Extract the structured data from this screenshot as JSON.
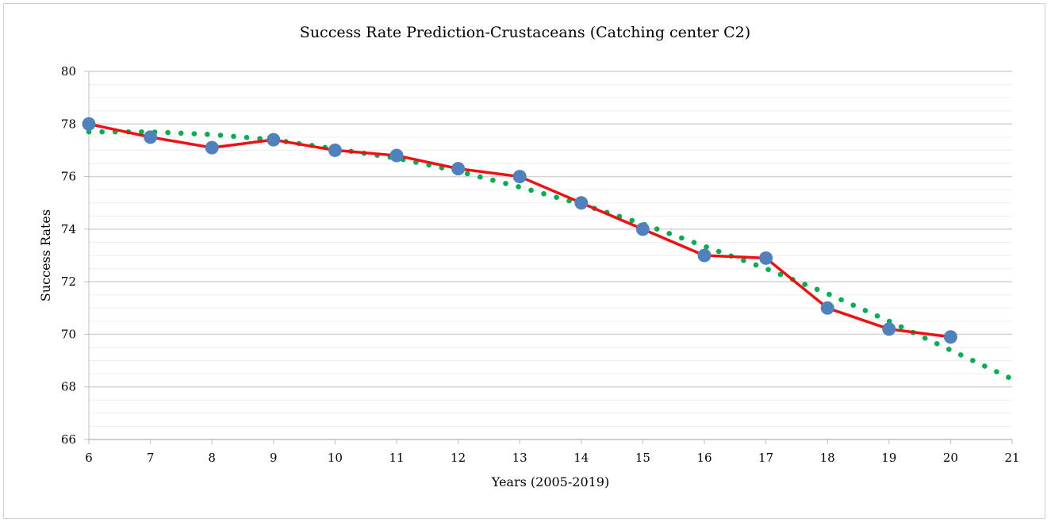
{
  "chart_data": {
    "type": "line",
    "title": "Success Rate Prediction-Crustaceans (Catching center C2)",
    "xlabel": "Years (2005-2019)",
    "ylabel": "Success Rates",
    "xlim": [
      6,
      21
    ],
    "ylim": [
      66,
      80
    ],
    "x_ticks": [
      6,
      7,
      8,
      9,
      10,
      11,
      12,
      13,
      14,
      15,
      16,
      17,
      18,
      19,
      20,
      21
    ],
    "y_ticks": [
      66,
      68,
      70,
      72,
      74,
      76,
      78,
      80
    ],
    "y_minor_step": 0.5,
    "grid": true,
    "legend": "none",
    "series": [
      {
        "style": "solid line with circle markers",
        "line_color": "#ee1111",
        "marker_color": "#4f81bd",
        "x": [
          6,
          7,
          8,
          9,
          10,
          11,
          12,
          13,
          14,
          15,
          16,
          17,
          18,
          19,
          20
        ],
        "y": [
          78.0,
          77.5,
          77.1,
          77.4,
          77.0,
          76.8,
          76.3,
          76.0,
          75.0,
          74.0,
          73.0,
          72.9,
          71.0,
          70.2,
          69.9
        ]
      },
      {
        "style": "dotted polynomial trendline",
        "line_color": "#00b050",
        "x": [
          6,
          7,
          8,
          9,
          10,
          11,
          12,
          13,
          14,
          15,
          16,
          17,
          18,
          19,
          20,
          21
        ],
        "y": [
          77.7,
          77.7,
          77.6,
          77.4,
          77.05,
          76.7,
          76.2,
          75.6,
          74.95,
          74.2,
          73.35,
          72.5,
          71.55,
          70.5,
          69.4,
          68.3
        ]
      }
    ]
  }
}
